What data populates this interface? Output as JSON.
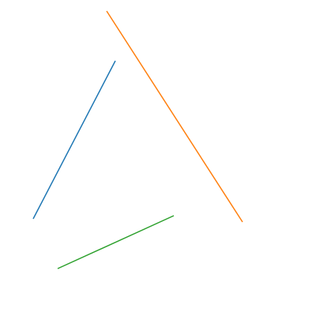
{
  "diagram": {
    "background": "#ffffff",
    "segments": [
      {
        "id": "blue",
        "color": "#1f77b4"
      },
      {
        "id": "orange",
        "color": "#ff7f0e"
      },
      {
        "id": "green",
        "color": "#2ca02c"
      }
    ]
  }
}
